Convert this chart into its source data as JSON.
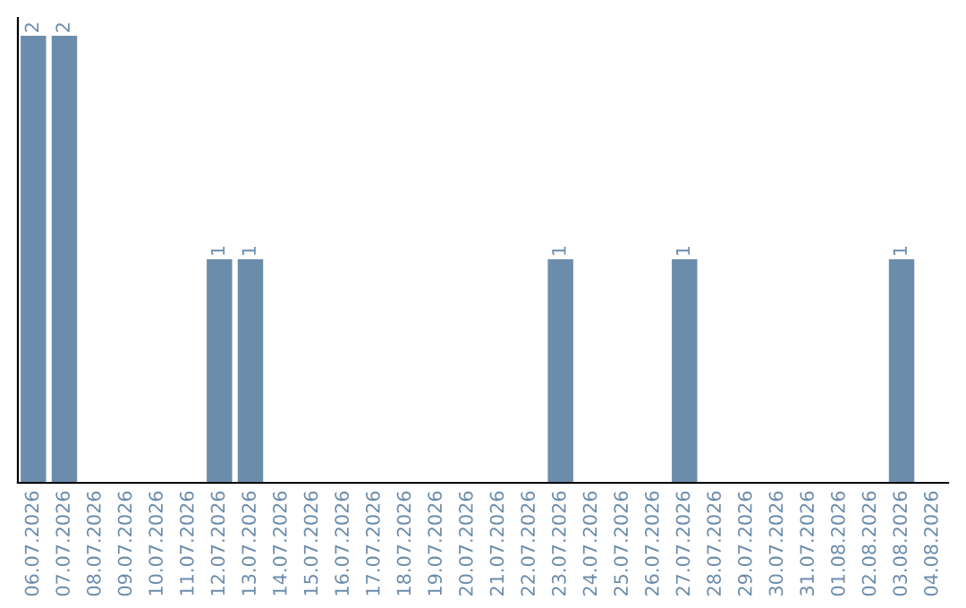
{
  "chart_data": {
    "type": "bar",
    "categories": [
      "06.07.2026",
      "07.07.2026",
      "08.07.2026",
      "09.07.2026",
      "10.07.2026",
      "11.07.2026",
      "12.07.2026",
      "13.07.2026",
      "14.07.2026",
      "15.07.2026",
      "16.07.2026",
      "17.07.2026",
      "18.07.2026",
      "19.07.2026",
      "20.07.2026",
      "21.07.2026",
      "22.07.2026",
      "23.07.2026",
      "24.07.2026",
      "25.07.2026",
      "26.07.2026",
      "27.07.2026",
      "28.07.2026",
      "29.07.2026",
      "30.07.2026",
      "31.07.2026",
      "01.08.2026",
      "02.08.2026",
      "03.08.2026",
      "04.08.2026"
    ],
    "values": [
      2,
      2,
      0,
      0,
      0,
      0,
      1,
      1,
      0,
      0,
      0,
      0,
      0,
      0,
      0,
      0,
      0,
      1,
      0,
      0,
      0,
      1,
      0,
      0,
      0,
      0,
      0,
      0,
      1,
      0
    ],
    "value_labels": [
      "2",
      "2",
      null,
      null,
      null,
      null,
      "1",
      "1",
      null,
      null,
      null,
      null,
      null,
      null,
      null,
      null,
      null,
      "1",
      null,
      null,
      null,
      "1",
      null,
      null,
      null,
      null,
      null,
      null,
      "1",
      null
    ],
    "color": "#6b8cab",
    "ylim": [
      0,
      2.08
    ],
    "tick_labels": "x",
    "grid": false,
    "legend": false
  }
}
